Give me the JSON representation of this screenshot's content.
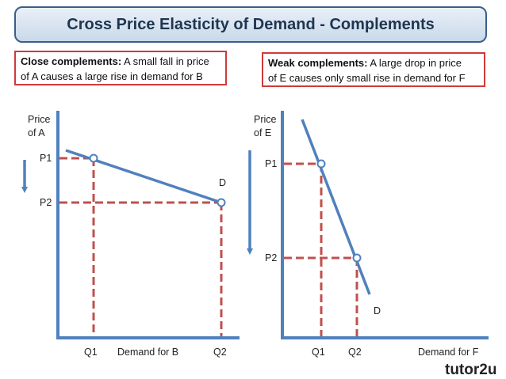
{
  "title": "Cross Price Elasticity of Demand - Complements",
  "left_note": {
    "heading": "Close complements:",
    "line1": " A small fall in price",
    "line2": "of A causes a large rise in demand for B"
  },
  "right_note": {
    "heading": "Weak complements:",
    "line1": " A large drop in price",
    "line2": "of E causes only small rise in demand for F"
  },
  "left_chart": {
    "price_label_line1": "Price",
    "price_label_line2": "of A",
    "p1": "P1",
    "p2": "P2",
    "q1": "Q1",
    "q2": "Q2",
    "x_label": "Demand for B",
    "curve_label": "D"
  },
  "right_chart": {
    "price_label_line1": "Price",
    "price_label_line2": "of E",
    "p1": "P1",
    "p2": "P2",
    "q1": "Q1",
    "q2": "Q2",
    "x_label": "Demand for F",
    "curve_label": "D"
  },
  "logo": "tutor2u",
  "colors": {
    "axis": "#4f81bd",
    "curve": "#4f81bd",
    "guide": "#c0504d",
    "note_border": "#d03a3a",
    "title_border": "#3b5f8a"
  }
}
